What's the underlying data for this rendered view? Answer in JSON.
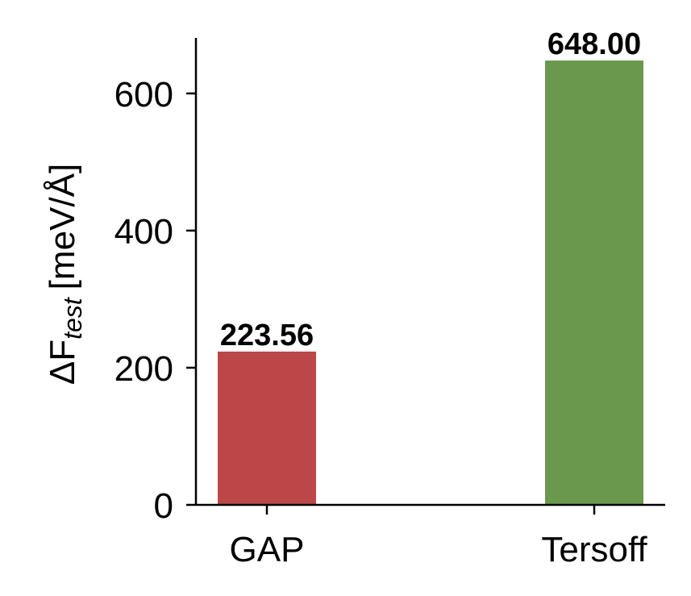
{
  "chart_data": {
    "type": "bar",
    "ylabel": [
      "ΔF",
      "test",
      "[meV/Å]"
    ],
    "categories": [
      "GAP",
      "Tersoff"
    ],
    "values": [
      223.56,
      648
    ],
    "value_labels": [
      "223.56",
      "648.00"
    ],
    "colors": [
      "#bc4749",
      "#6a994e"
    ],
    "ylim": [
      0,
      681
    ],
    "yticks": [
      0,
      200,
      400,
      600
    ],
    "grid": false
  }
}
